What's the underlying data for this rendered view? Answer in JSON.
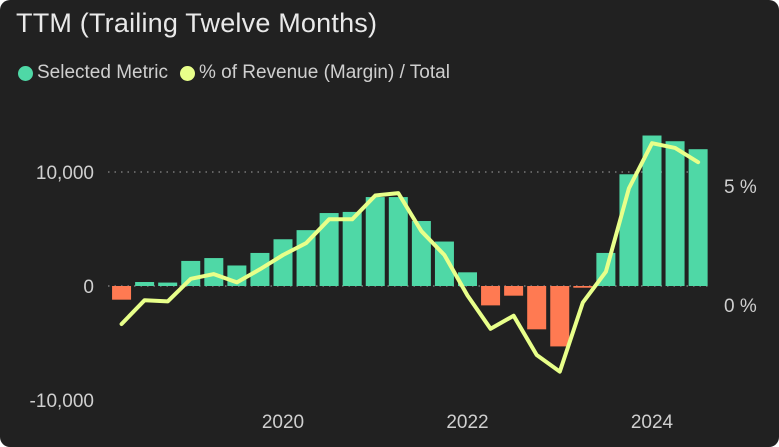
{
  "title": "TTM (Trailing Twelve Months)",
  "legend": [
    {
      "label": "Selected Metric",
      "color": "#4fd8a6"
    },
    {
      "label": "% of Revenue (Margin) / Total",
      "color": "#e8ff8a"
    }
  ],
  "colors": {
    "background": "#212121",
    "positive": "#4fd8a6",
    "negative": "#ff7a52",
    "line": "#e8ff8a",
    "grid": "#8a8a8a",
    "text": "#cfcfcf"
  },
  "chart_data": {
    "type": "bar",
    "title": "TTM (Trailing Twelve Months)",
    "xlabel": "",
    "ylabel": "",
    "x_ticks": [
      {
        "label": "2020",
        "x": 2020.0
      },
      {
        "label": "2022",
        "x": 2022.0
      },
      {
        "label": "2024",
        "x": 2024.0
      }
    ],
    "y_left": {
      "ticks": [
        {
          "label": "10,000",
          "value": 10000
        },
        {
          "label": "0",
          "value": 0
        },
        {
          "label": "-10,000",
          "value": -10000
        }
      ],
      "range": [
        -10000,
        14000
      ]
    },
    "y_right": {
      "ticks": [
        {
          "label": "5 %",
          "value": 5
        },
        {
          "label": "0 %",
          "value": 0
        }
      ],
      "range": [
        -3,
        7.5
      ]
    },
    "x": [
      2018.25,
      2018.5,
      2018.75,
      2019.0,
      2019.25,
      2019.5,
      2019.75,
      2020.0,
      2020.25,
      2020.5,
      2020.75,
      2021.0,
      2021.25,
      2021.5,
      2021.75,
      2022.0,
      2022.25,
      2022.5,
      2022.75,
      2023.0,
      2023.25,
      2023.5,
      2023.75,
      2024.0,
      2024.25,
      2024.5
    ],
    "series": [
      {
        "name": "Selected Metric",
        "axis": "left",
        "values": [
          -1200,
          350,
          300,
          2200,
          2450,
          1800,
          2900,
          4100,
          4900,
          6400,
          6500,
          7800,
          7800,
          5700,
          3900,
          1200,
          -1700,
          -850,
          -3800,
          -5300,
          -150,
          2900,
          9800,
          13200,
          12700,
          12000
        ]
      },
      {
        "name": "% of Revenue (Margin) / Total",
        "axis": "right",
        "values": [
          -0.8,
          0.2,
          0.15,
          1.1,
          1.3,
          0.95,
          1.5,
          2.1,
          2.6,
          3.6,
          3.6,
          4.6,
          4.7,
          3.1,
          2.1,
          0.4,
          -1.0,
          -0.45,
          -2.1,
          -2.8,
          0.1,
          1.4,
          4.9,
          6.8,
          6.6,
          6.0
        ]
      }
    ],
    "grid": true,
    "legend_position": "top-left"
  }
}
